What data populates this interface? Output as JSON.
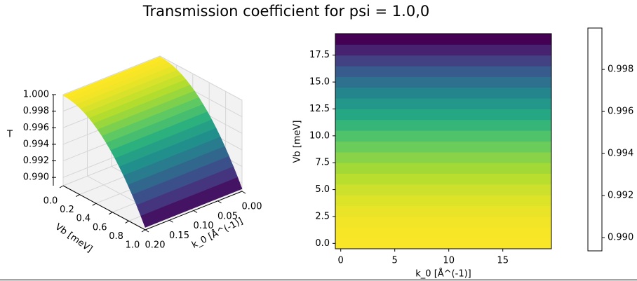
{
  "title": "Transmission coefficient for psi = 1.0,0",
  "chart_data": [
    {
      "type": "surface",
      "x_label": "Vb [meV]",
      "y_label": "k_0 [Å^(-1)]",
      "z_label": "T",
      "x": [
        0,
        0.053,
        0.105,
        0.158,
        0.211,
        0.263,
        0.316,
        0.368,
        0.421,
        0.474,
        0.526,
        0.579,
        0.632,
        0.684,
        0.737,
        0.789,
        0.842,
        0.895,
        0.947,
        1
      ],
      "values": [
        0.9999,
        0.99987,
        0.99978,
        0.99964,
        0.99943,
        0.99917,
        0.99884,
        0.99846,
        0.99802,
        0.99752,
        0.99696,
        0.99635,
        0.99567,
        0.99494,
        0.99415,
        0.99329,
        0.99238,
        0.99141,
        0.99039,
        0.9893
      ],
      "xlim": [
        0,
        1
      ],
      "xticks": [
        {
          "value": 0,
          "label": "0.0"
        },
        0.2,
        0.4,
        0.6,
        0.8,
        {
          "value": 1,
          "label": "1.0"
        }
      ],
      "ylim": [
        0,
        0.2
      ],
      "yticks": [
        {
          "value": 0,
          "label": "0.00"
        },
        0.05,
        {
          "value": 0.1,
          "label": "0.10"
        },
        0.15,
        {
          "value": 0.2,
          "label": "0.20"
        }
      ],
      "zlim": [
        0.989,
        1.0
      ],
      "zticks": [
        {
          "value": 0.99,
          "label": "0.990"
        },
        0.992,
        0.994,
        0.996,
        0.998,
        {
          "value": 1,
          "label": "1.000"
        }
      ],
      "colormap": "viridis",
      "grid": true
    },
    {
      "type": "heatmap",
      "x_label": "k_0 [Å^(-1)]",
      "y_label": "Vb [meV]",
      "y": [
        0,
        1,
        2,
        3,
        4,
        5,
        6,
        7,
        8,
        9,
        10,
        11,
        12,
        13,
        14,
        15,
        16,
        17,
        18,
        19
      ],
      "values": [
        0.9999,
        0.99987,
        0.99978,
        0.99964,
        0.99943,
        0.99917,
        0.99884,
        0.99846,
        0.99802,
        0.99752,
        0.99696,
        0.99635,
        0.99567,
        0.99494,
        0.99415,
        0.99329,
        0.99238,
        0.99141,
        0.99039,
        0.9893
      ],
      "xlim": [
        -0.5,
        19.5
      ],
      "xticks": [
        0,
        5,
        10,
        15
      ],
      "ylim": [
        -0.5,
        19.5
      ],
      "yticks": [
        {
          "value": 0,
          "label": "0.0"
        },
        2.5,
        {
          "value": 5,
          "label": "5.0"
        },
        7.5,
        {
          "value": 10,
          "label": "10.0"
        },
        12.5,
        {
          "value": 15,
          "label": "15.0"
        },
        17.5
      ],
      "colormap": "viridis",
      "colorbar": {
        "lim": [
          0.98937,
          0.99997
        ],
        "ticks": [
          {
            "value": 0.99,
            "label": "0.990"
          },
          0.992,
          0.994,
          0.996,
          0.998
        ]
      }
    }
  ]
}
